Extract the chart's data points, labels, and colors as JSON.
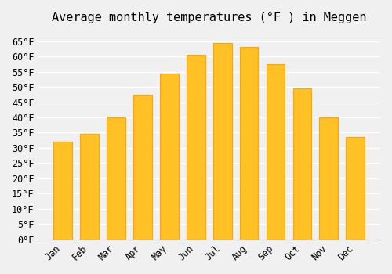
{
  "title": "Average monthly temperatures (°F ) in Meggen",
  "months": [
    "Jan",
    "Feb",
    "Mar",
    "Apr",
    "May",
    "Jun",
    "Jul",
    "Aug",
    "Sep",
    "Oct",
    "Nov",
    "Dec"
  ],
  "values": [
    32,
    34.5,
    40,
    47.5,
    54.5,
    60.5,
    64.5,
    63,
    57.5,
    49.5,
    40,
    33.5
  ],
  "bar_color": "#FFC125",
  "bar_edge_color": "#FFA500",
  "background_color": "#f0f0f0",
  "grid_color": "#ffffff",
  "ylim": [
    0,
    68
  ],
  "yticks": [
    0,
    5,
    10,
    15,
    20,
    25,
    30,
    35,
    40,
    45,
    50,
    55,
    60,
    65
  ],
  "title_fontsize": 11,
  "tick_fontsize": 8.5
}
